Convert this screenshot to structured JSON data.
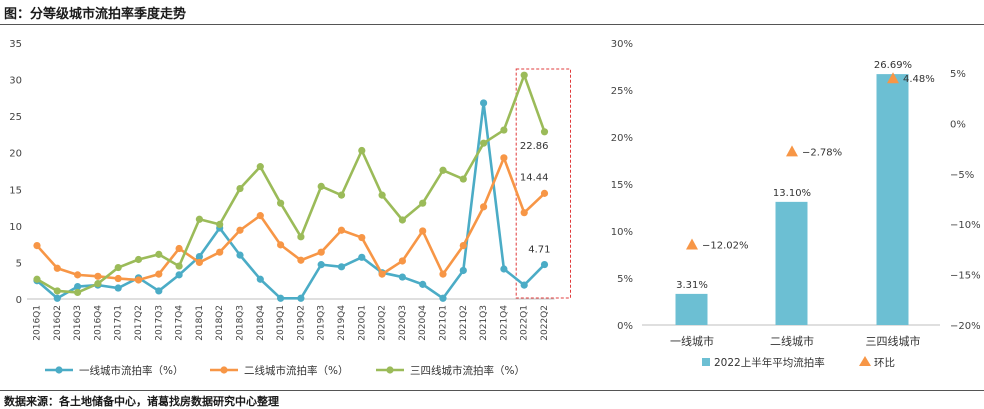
{
  "header": {
    "title": "图：分等级城市流拍率季度走势"
  },
  "footer": {
    "source": "数据来源：各土地储备中心，诸葛找房数据研究中心整理"
  },
  "chart_data": [
    {
      "type": "line",
      "ylim": [
        0,
        35
      ],
      "yticks": [
        0,
        5,
        10,
        15,
        20,
        25,
        30,
        35
      ],
      "categories": [
        "2016Q1",
        "2016Q2",
        "2016Q3",
        "2016Q4",
        "2017Q1",
        "2017Q2",
        "2017Q3",
        "2017Q4",
        "2018Q1",
        "2018Q2",
        "2018Q3",
        "2018Q4",
        "2019Q1",
        "2019Q2",
        "2019Q3",
        "2019Q4",
        "2020Q1",
        "2020Q2",
        "2020Q3",
        "2020Q4",
        "2021Q1",
        "2021Q2",
        "2021Q3",
        "2021Q4",
        "2022Q1",
        "2022Q2"
      ],
      "series": [
        {
          "name": "一线城市流拍率（%）",
          "color": "#4bacc6",
          "values": [
            2.5,
            0.1,
            1.7,
            1.9,
            1.5,
            2.9,
            1.1,
            3.3,
            5.8,
            9.7,
            6.0,
            2.7,
            0.1,
            0.1,
            4.7,
            4.4,
            5.7,
            3.6,
            3.0,
            2.0,
            0.1,
            3.9,
            26.8,
            4.1,
            1.9,
            4.71
          ]
        },
        {
          "name": "二线城市流拍率（%）",
          "color": "#f79646",
          "values": [
            7.3,
            4.2,
            3.3,
            3.1,
            2.8,
            2.6,
            3.4,
            6.9,
            5.0,
            6.4,
            9.4,
            11.4,
            7.4,
            5.3,
            6.4,
            9.4,
            8.4,
            3.4,
            5.2,
            9.3,
            3.4,
            7.3,
            12.6,
            19.3,
            11.8,
            14.44
          ]
        },
        {
          "name": "三四线城市流拍率（%）",
          "color": "#9bbb59",
          "values": [
            2.7,
            1.1,
            0.9,
            2.1,
            4.3,
            5.4,
            6.1,
            4.5,
            10.9,
            10.2,
            15.1,
            18.1,
            13.1,
            8.5,
            15.4,
            14.2,
            20.3,
            14.2,
            10.8,
            13.1,
            17.6,
            16.4,
            21.3,
            23.1,
            30.6,
            22.86
          ]
        }
      ],
      "data_labels": [
        {
          "series": 2,
          "index": 25,
          "text": "22.86"
        },
        {
          "series": 1,
          "index": 25,
          "text": "14.44"
        },
        {
          "series": 0,
          "index": 25,
          "text": "4.71"
        }
      ],
      "highlight": {
        "from": "2022Q1",
        "to": "2022Q2",
        "style": "dashed red box"
      },
      "grid": false,
      "legend": "bottom"
    },
    {
      "type": "bar",
      "categories": [
        "一线城市",
        "二线城市",
        "三四线城市"
      ],
      "ylim": [
        0,
        30
      ],
      "yticks": [
        "0%",
        "5%",
        "10%",
        "15%",
        "20%",
        "25%",
        "30%"
      ],
      "y2lim": [
        -20,
        5
      ],
      "y2ticks": [
        "5%",
        "0%",
        "−5%",
        "−10%",
        "−15%",
        "−20%"
      ],
      "series": [
        {
          "name": "2022上半年平均流拍率",
          "kind": "bar",
          "color": "#6cbfd3",
          "values": [
            3.31,
            13.1,
            26.69
          ],
          "labels": [
            "3.31%",
            "13.10%",
            "26.69%"
          ]
        },
        {
          "name": "环比",
          "kind": "marker",
          "axis": "right",
          "color": "#f79646",
          "values": [
            -12.02,
            -2.78,
            4.48
          ],
          "labels": [
            "−12.02%",
            "−2.78%",
            "4.48%"
          ]
        }
      ],
      "legend": "bottom"
    }
  ]
}
